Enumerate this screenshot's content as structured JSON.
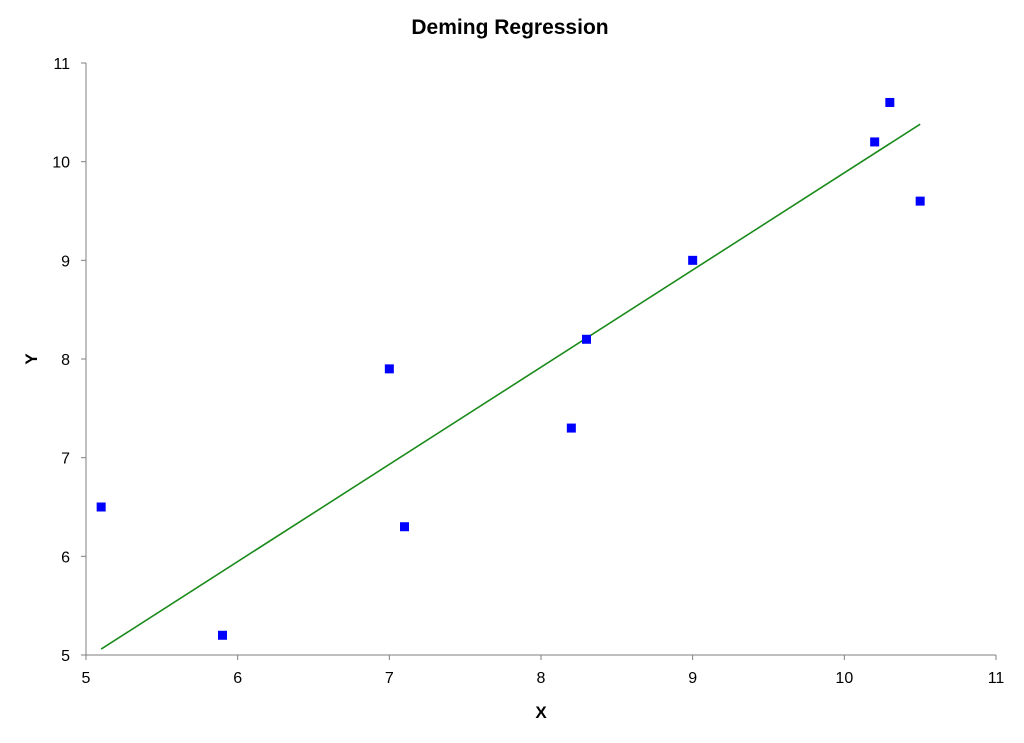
{
  "chart_data": {
    "type": "scatter",
    "title": "Deming Regression",
    "xlabel": "X",
    "ylabel": "Y",
    "xlim": [
      5,
      11
    ],
    "ylim": [
      5,
      11
    ],
    "x_ticks": [
      "5",
      "6",
      "7",
      "8",
      "9",
      "10",
      "11"
    ],
    "y_ticks": [
      "5",
      "6",
      "7",
      "8",
      "9",
      "10",
      "11"
    ],
    "grid": false,
    "legend": "none",
    "series": [
      {
        "type": "scatter",
        "marker": "square",
        "color": "#0000ff",
        "points": [
          {
            "x": 5.1,
            "y": 6.5
          },
          {
            "x": 5.9,
            "y": 5.2
          },
          {
            "x": 7.0,
            "y": 7.9
          },
          {
            "x": 7.1,
            "y": 6.3
          },
          {
            "x": 8.2,
            "y": 7.3
          },
          {
            "x": 8.3,
            "y": 8.2
          },
          {
            "x": 9.0,
            "y": 9.0
          },
          {
            "x": 10.2,
            "y": 10.2
          },
          {
            "x": 10.3,
            "y": 10.6
          },
          {
            "x": 10.5,
            "y": 9.6
          }
        ]
      },
      {
        "type": "line",
        "color": "#1a8a1a",
        "points": [
          {
            "x": 5.1,
            "y": 5.06
          },
          {
            "x": 10.5,
            "y": 10.38
          }
        ]
      }
    ]
  }
}
